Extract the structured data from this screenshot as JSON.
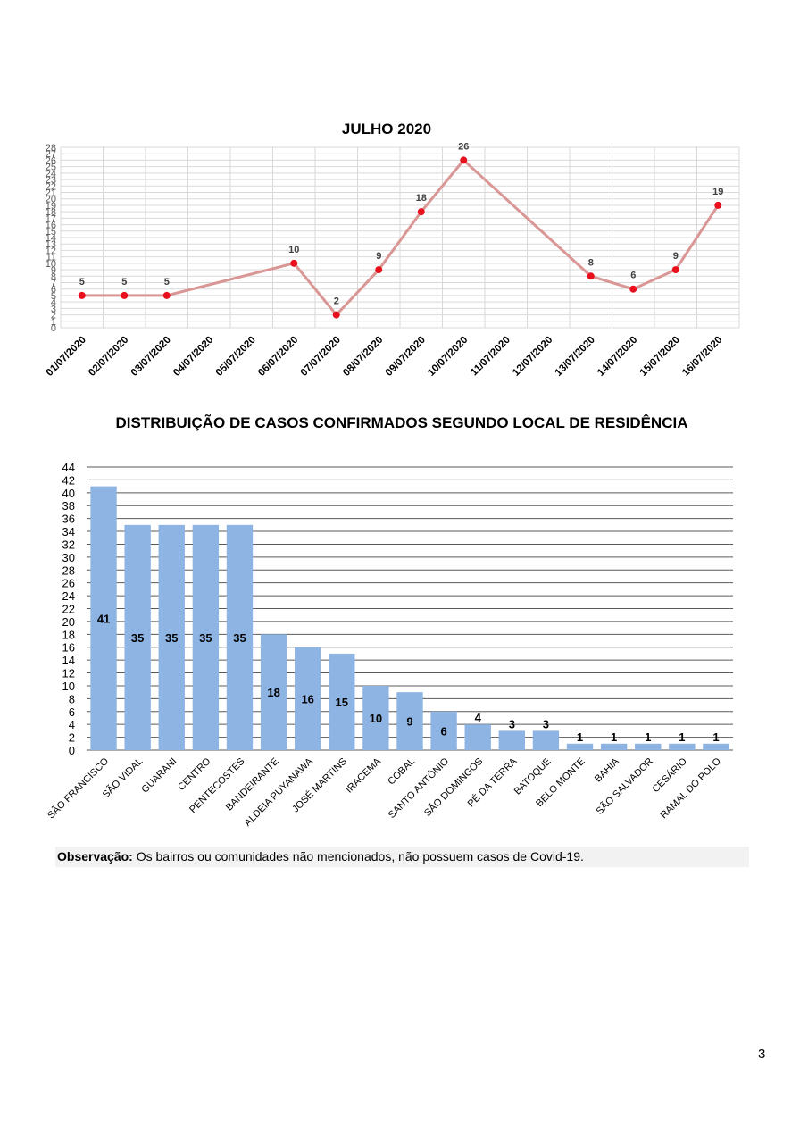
{
  "chart_data": [
    {
      "type": "line",
      "title": "JULHO 2020",
      "xlabel": "",
      "ylabel": "",
      "ylim": [
        0,
        28
      ],
      "grid": true,
      "legend": "none",
      "x": [
        "01/07/2020",
        "02/07/2020",
        "03/07/2020",
        "04/07/2020",
        "05/07/2020",
        "06/07/2020",
        "07/07/2020",
        "08/07/2020",
        "09/07/2020",
        "10/07/2020",
        "11/07/2020",
        "12/07/2020",
        "13/07/2020",
        "14/07/2020",
        "15/07/2020",
        "16/07/2020"
      ],
      "values": [
        5,
        5,
        5,
        null,
        null,
        10,
        2,
        9,
        18,
        26,
        null,
        null,
        8,
        6,
        9,
        19
      ],
      "line_color": "#d99694",
      "marker_color": "#e8101c"
    },
    {
      "type": "bar",
      "title": "DISTRIBUIÇÃO DE CASOS CONFIRMADOS SEGUNDO LOCAL DE RESIDÊNCIA",
      "xlabel": "",
      "ylabel": "",
      "ylim": [
        0,
        44
      ],
      "grid": true,
      "legend": "none",
      "categories": [
        "SÃO FRANCISCO",
        "SÃO VIDAL",
        "GUARANI",
        "CENTRO",
        "PENTECOSTES",
        "BANDEIRANTE",
        "ALDEIA PUYANAWA",
        "JOSÉ MARTINS",
        "IRACEMA",
        "COBAL",
        "SANTO ANTÔNIO",
        "SÃO DOMINGOS",
        "PÉ DA TERRA",
        "BATOQUE",
        "BELO MONTE",
        "BAHIA",
        "SÃO SALVADOR",
        "CESÁRIO",
        "RAMAL DO POLO"
      ],
      "values": [
        41,
        35,
        35,
        35,
        35,
        18,
        16,
        15,
        10,
        9,
        6,
        4,
        3,
        3,
        1,
        1,
        1,
        1,
        1
      ],
      "bar_color": "#8eb4e3"
    }
  ],
  "note": {
    "label": "Observação:",
    "text": " Os bairros ou comunidades não mencionados, não possuem casos de Covid-19."
  },
  "page_number": "3"
}
